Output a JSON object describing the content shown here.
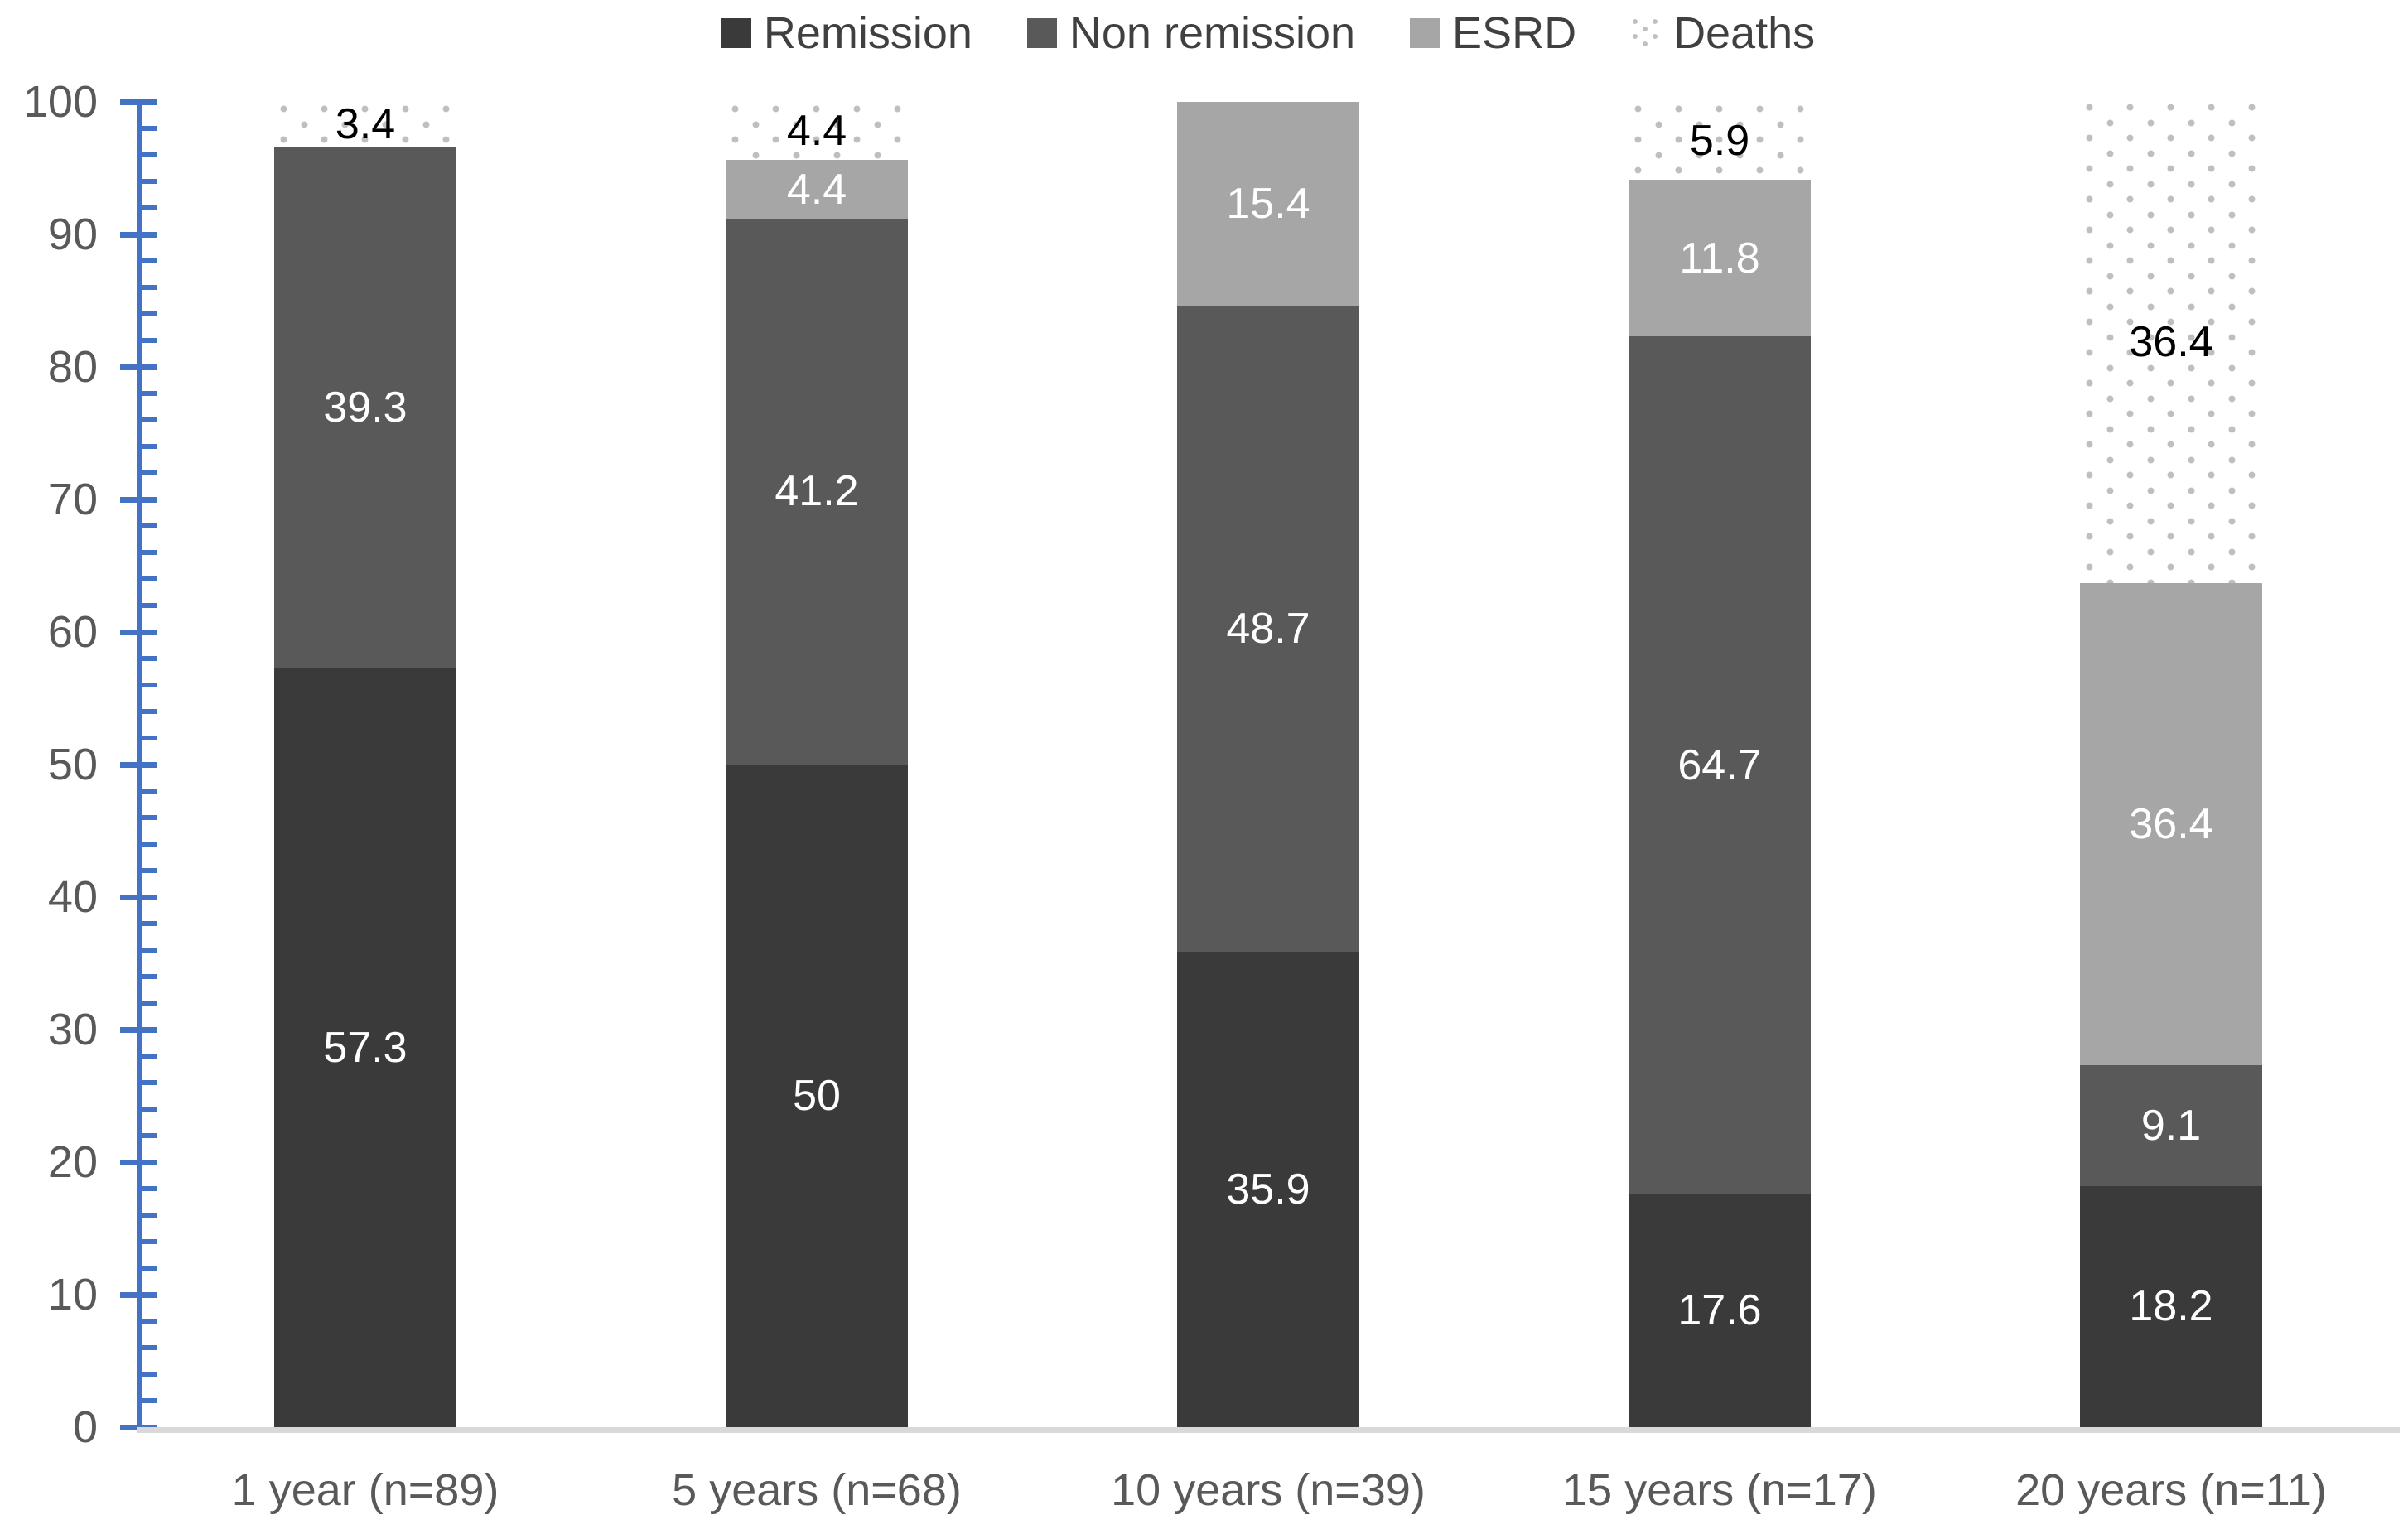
{
  "legend": {
    "position": "top",
    "items": [
      "Remission",
      "Non remission",
      "ESRD",
      "Deaths"
    ]
  },
  "y_axis": {
    "min": 0,
    "max": 100,
    "major_step": 10,
    "minor_step": 2,
    "tick_labels": [
      "0",
      "10",
      "20",
      "30",
      "40",
      "50",
      "60",
      "70",
      "80",
      "90",
      "100"
    ]
  },
  "colors": {
    "remission": "#3A3A3A",
    "non_remission": "#595959",
    "esrd": "#A6A6A6",
    "deaths_dot": "#BFBFBF",
    "axis_blue": "#4472C4",
    "x_axis_line": "#D9D9D9",
    "axis_label_text": "#595959",
    "legend_text": "#404040",
    "label_on_bar": "#FFFFFF",
    "label_on_dots": "#000000"
  },
  "chart_data": {
    "type": "bar",
    "stacked": true,
    "grid": false,
    "legend_position": "top",
    "ylim": [
      0,
      100
    ],
    "categories": [
      "1 year (n=89)",
      "5 years (n=68)",
      "10 years (n=39)",
      "15 years (n=17)",
      "20 years (n=11)"
    ],
    "series": [
      {
        "name": "Remission",
        "pattern": "solid",
        "color": "#3A3A3A",
        "label_color": "#FFFFFF",
        "values": [
          57.3,
          50,
          35.9,
          17.6,
          18.2
        ],
        "labels": [
          "57.3",
          "50",
          "35.9",
          "17.6",
          "18.2"
        ]
      },
      {
        "name": "Non remission",
        "pattern": "solid",
        "color": "#595959",
        "label_color": "#FFFFFF",
        "values": [
          39.3,
          41.2,
          48.7,
          64.7,
          9.1
        ],
        "labels": [
          "39.3",
          "41.2",
          "48.7",
          "64.7",
          "9.1"
        ]
      },
      {
        "name": "ESRD",
        "pattern": "solid",
        "color": "#A6A6A6",
        "label_color": "#FFFFFF",
        "values": [
          0,
          4.4,
          15.4,
          11.8,
          36.4
        ],
        "labels": [
          "",
          "4.4",
          "15.4",
          "11.8",
          "36.4"
        ]
      },
      {
        "name": "Deaths",
        "pattern": "dotted",
        "color": "#BFBFBF",
        "label_color": "#000000",
        "values": [
          3.4,
          4.4,
          0,
          5.9,
          36.4
        ],
        "labels": [
          "3.4",
          "4.4",
          "",
          "5.9",
          "36.4"
        ]
      }
    ]
  }
}
